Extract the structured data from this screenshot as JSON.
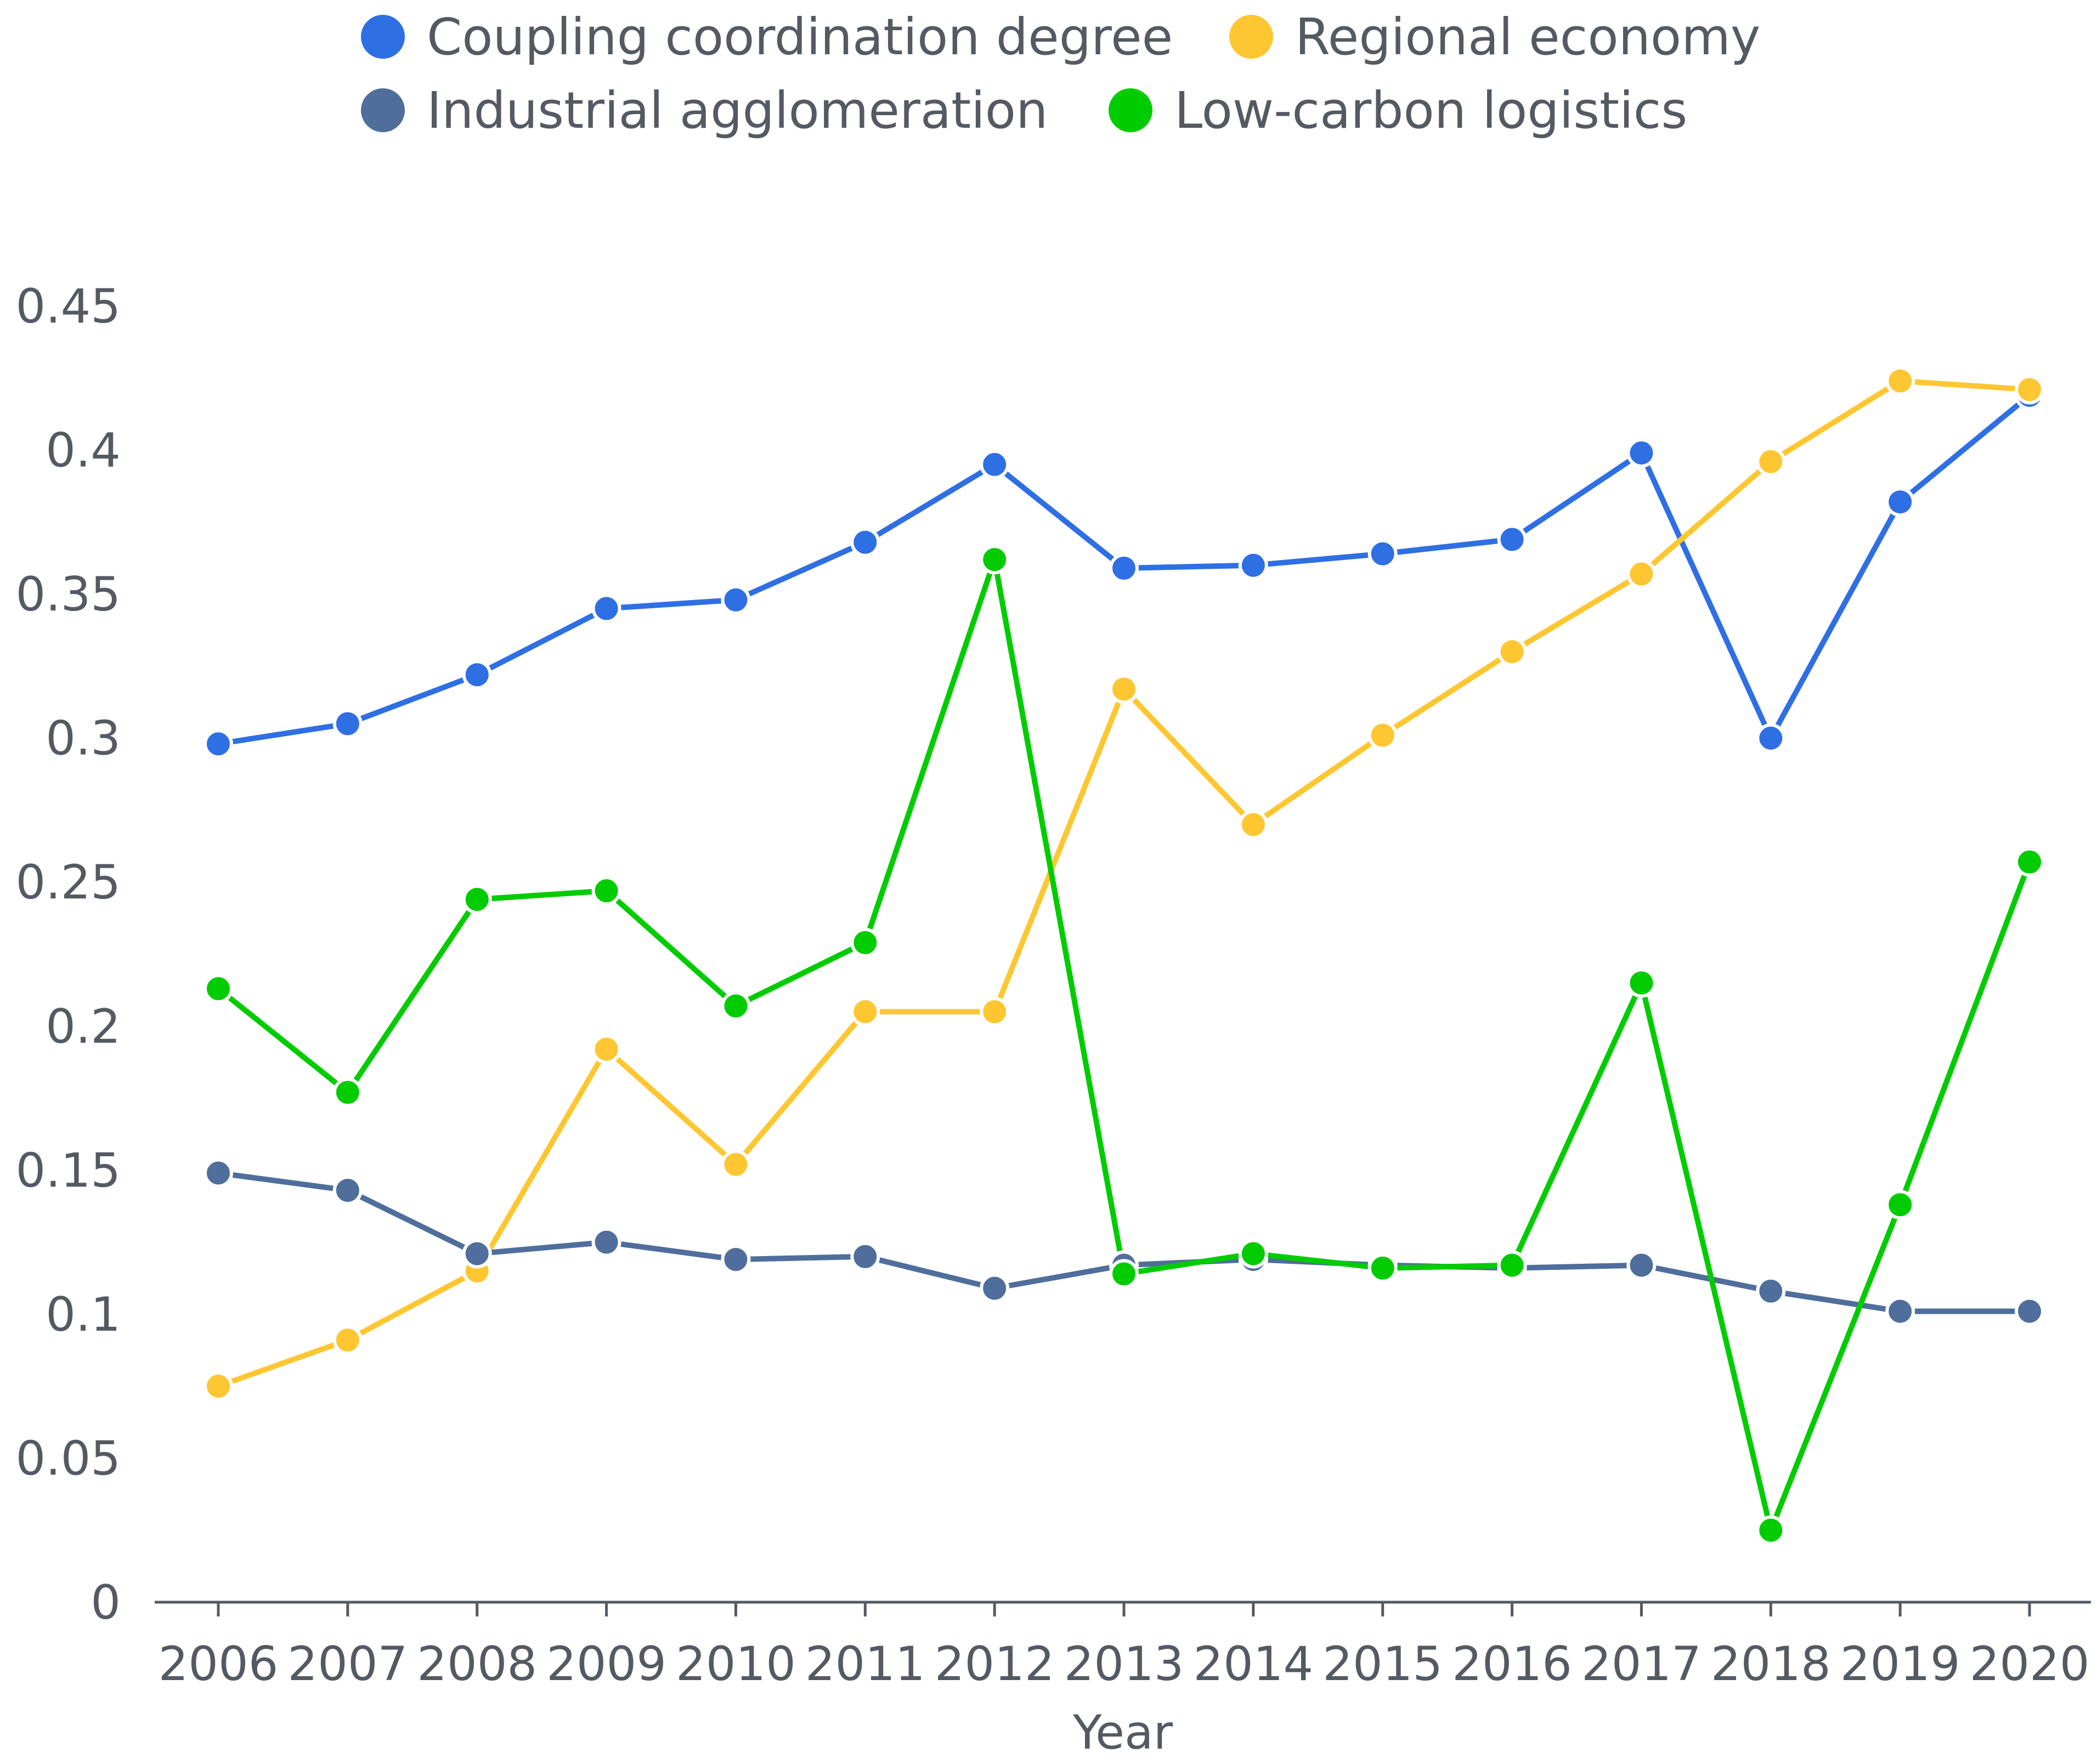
{
  "chart_data": {
    "type": "line",
    "title": "",
    "xlabel": "Year",
    "ylabel": "",
    "ylim": [
      0,
      0.45
    ],
    "y_ticks": [
      "0",
      "0.05",
      "0.1",
      "0.15",
      "0.2",
      "0.25",
      "0.3",
      "0.35",
      "0.4",
      "0.45"
    ],
    "categories": [
      "2006",
      "2007",
      "2008",
      "2009",
      "2010",
      "2011",
      "2012",
      "2013",
      "2014",
      "2015",
      "2016",
      "2017",
      "2018",
      "2019",
      "2020"
    ],
    "grid": false,
    "legend_position": "top",
    "series": [
      {
        "name": "Coupling coordination degree",
        "color": "#2f6fe4",
        "values": [
          0.298,
          0.305,
          0.322,
          0.345,
          0.348,
          0.368,
          0.395,
          0.359,
          0.36,
          0.364,
          0.369,
          0.399,
          0.3,
          0.382,
          0.419
        ]
      },
      {
        "name": "Regional economy",
        "color": "#fec732",
        "values": [
          0.075,
          0.091,
          0.115,
          0.192,
          0.152,
          0.205,
          0.205,
          0.317,
          0.27,
          0.301,
          0.33,
          0.357,
          0.396,
          0.424,
          0.421
        ]
      },
      {
        "name": "Industrial agglomeration",
        "color": "#4f6e9c",
        "values": [
          0.149,
          0.143,
          0.121,
          0.125,
          0.119,
          0.12,
          0.109,
          0.117,
          0.119,
          0.117,
          0.116,
          0.117,
          0.108,
          0.101,
          0.101
        ]
      },
      {
        "name": "Low-carbon logistics",
        "color": "#00cc00",
        "values": [
          0.213,
          0.177,
          0.244,
          0.247,
          0.207,
          0.229,
          0.362,
          0.114,
          0.121,
          0.116,
          0.117,
          0.215,
          0.025,
          0.138,
          0.257
        ]
      }
    ]
  }
}
